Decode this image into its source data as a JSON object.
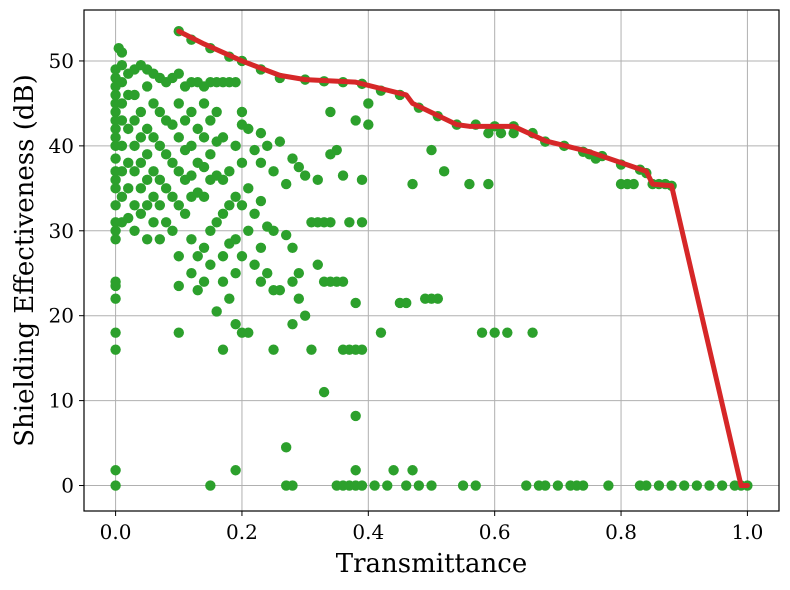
{
  "chart_data": {
    "type": "scatter",
    "xlabel": "Transmittance",
    "ylabel": "Shielding Effectiveness (dB)",
    "xlim": [
      -0.05,
      1.05
    ],
    "ylim": [
      -3,
      56
    ],
    "grid": true,
    "xticks": [
      0.0,
      0.2,
      0.4,
      0.6,
      0.8,
      1.0
    ],
    "xtick_labels": [
      "0.0",
      "0.2",
      "0.4",
      "0.6",
      "0.8",
      "1.0"
    ],
    "yticks": [
      0,
      10,
      20,
      30,
      40,
      50
    ],
    "ytick_labels": [
      "0",
      "10",
      "20",
      "30",
      "40",
      "50"
    ],
    "colors": {
      "points": "#2ca02c",
      "frontier": "#d62728",
      "grid": "#b0b0b0"
    },
    "points": [
      [
        0.0,
        0
      ],
      [
        0.0,
        1.8
      ],
      [
        0.0,
        16
      ],
      [
        0.0,
        18
      ],
      [
        0.0,
        22
      ],
      [
        0.0,
        23.5
      ],
      [
        0.0,
        24
      ],
      [
        0.0,
        29
      ],
      [
        0.0,
        30
      ],
      [
        0.0,
        31
      ],
      [
        0.0,
        33
      ],
      [
        0.0,
        35
      ],
      [
        0.0,
        36
      ],
      [
        0.0,
        37
      ],
      [
        0.0,
        38.5
      ],
      [
        0.0,
        40
      ],
      [
        0.0,
        41
      ],
      [
        0.0,
        42
      ],
      [
        0.0,
        43
      ],
      [
        0.0,
        44
      ],
      [
        0.0,
        45
      ],
      [
        0.0,
        46
      ],
      [
        0.0,
        47
      ],
      [
        0.0,
        48
      ],
      [
        0.0,
        49
      ],
      [
        0.005,
        51.5
      ],
      [
        0.01,
        51
      ],
      [
        0.01,
        49.5
      ],
      [
        0.01,
        47.5
      ],
      [
        0.01,
        45
      ],
      [
        0.01,
        43
      ],
      [
        0.01,
        40
      ],
      [
        0.01,
        37
      ],
      [
        0.01,
        34
      ],
      [
        0.01,
        31
      ],
      [
        0.02,
        48.5
      ],
      [
        0.02,
        46
      ],
      [
        0.02,
        42
      ],
      [
        0.02,
        38
      ],
      [
        0.02,
        35
      ],
      [
        0.02,
        31.5
      ],
      [
        0.03,
        49
      ],
      [
        0.03,
        46
      ],
      [
        0.03,
        43
      ],
      [
        0.03,
        40
      ],
      [
        0.03,
        37
      ],
      [
        0.03,
        33
      ],
      [
        0.03,
        30
      ],
      [
        0.04,
        49.5
      ],
      [
        0.04,
        44
      ],
      [
        0.04,
        41
      ],
      [
        0.04,
        38
      ],
      [
        0.04,
        35
      ],
      [
        0.04,
        32
      ],
      [
        0.05,
        49
      ],
      [
        0.05,
        47
      ],
      [
        0.05,
        42
      ],
      [
        0.05,
        39
      ],
      [
        0.05,
        36
      ],
      [
        0.05,
        33
      ],
      [
        0.05,
        29
      ],
      [
        0.06,
        48.5
      ],
      [
        0.06,
        45
      ],
      [
        0.06,
        41
      ],
      [
        0.06,
        37
      ],
      [
        0.06,
        34
      ],
      [
        0.06,
        31
      ],
      [
        0.07,
        48
      ],
      [
        0.07,
        44
      ],
      [
        0.07,
        40
      ],
      [
        0.07,
        36
      ],
      [
        0.07,
        33
      ],
      [
        0.07,
        29
      ],
      [
        0.08,
        47.5
      ],
      [
        0.08,
        43
      ],
      [
        0.08,
        39
      ],
      [
        0.08,
        35
      ],
      [
        0.08,
        31
      ],
      [
        0.09,
        48
      ],
      [
        0.09,
        42.5
      ],
      [
        0.09,
        38
      ],
      [
        0.09,
        34
      ],
      [
        0.09,
        30
      ],
      [
        0.1,
        48.5
      ],
      [
        0.1,
        45
      ],
      [
        0.1,
        41
      ],
      [
        0.1,
        37
      ],
      [
        0.1,
        33
      ],
      [
        0.1,
        27
      ],
      [
        0.1,
        23.5
      ],
      [
        0.1,
        18
      ],
      [
        0.11,
        47
      ],
      [
        0.11,
        43
      ],
      [
        0.11,
        39.5
      ],
      [
        0.11,
        36
      ],
      [
        0.11,
        32
      ],
      [
        0.12,
        47.5
      ],
      [
        0.12,
        44
      ],
      [
        0.12,
        40
      ],
      [
        0.12,
        36.5
      ],
      [
        0.12,
        34
      ],
      [
        0.12,
        29
      ],
      [
        0.12,
        25
      ],
      [
        0.13,
        47.5
      ],
      [
        0.13,
        42
      ],
      [
        0.13,
        38
      ],
      [
        0.13,
        34.5
      ],
      [
        0.13,
        27
      ],
      [
        0.13,
        23
      ],
      [
        0.14,
        47
      ],
      [
        0.14,
        45
      ],
      [
        0.14,
        41
      ],
      [
        0.14,
        37.5
      ],
      [
        0.14,
        34
      ],
      [
        0.14,
        28
      ],
      [
        0.14,
        24
      ],
      [
        0.15,
        47.5
      ],
      [
        0.15,
        43
      ],
      [
        0.15,
        39
      ],
      [
        0.15,
        36
      ],
      [
        0.15,
        30
      ],
      [
        0.15,
        26
      ],
      [
        0.15,
        0
      ],
      [
        0.16,
        47.5
      ],
      [
        0.16,
        44
      ],
      [
        0.16,
        40.5
      ],
      [
        0.16,
        36.5
      ],
      [
        0.16,
        31
      ],
      [
        0.16,
        20.5
      ],
      [
        0.17,
        47.5
      ],
      [
        0.17,
        41
      ],
      [
        0.17,
        36
      ],
      [
        0.17,
        32
      ],
      [
        0.17,
        27
      ],
      [
        0.17,
        24
      ],
      [
        0.17,
        16
      ],
      [
        0.18,
        47.5
      ],
      [
        0.18,
        37
      ],
      [
        0.18,
        33
      ],
      [
        0.18,
        28.5
      ],
      [
        0.18,
        22
      ],
      [
        0.19,
        47.5
      ],
      [
        0.19,
        40
      ],
      [
        0.19,
        34
      ],
      [
        0.19,
        29
      ],
      [
        0.19,
        25
      ],
      [
        0.19,
        19
      ],
      [
        0.19,
        1.8
      ],
      [
        0.2,
        44
      ],
      [
        0.2,
        42.5
      ],
      [
        0.2,
        38
      ],
      [
        0.2,
        33
      ],
      [
        0.2,
        27
      ],
      [
        0.2,
        18
      ],
      [
        0.21,
        42
      ],
      [
        0.21,
        35
      ],
      [
        0.21,
        30
      ],
      [
        0.21,
        18
      ],
      [
        0.22,
        39.5
      ],
      [
        0.22,
        32
      ],
      [
        0.22,
        26
      ],
      [
        0.23,
        41.5
      ],
      [
        0.23,
        38
      ],
      [
        0.23,
        33.5
      ],
      [
        0.23,
        28
      ],
      [
        0.23,
        24
      ],
      [
        0.24,
        40
      ],
      [
        0.24,
        30.5
      ],
      [
        0.24,
        25
      ],
      [
        0.25,
        37
      ],
      [
        0.25,
        30
      ],
      [
        0.25,
        23
      ],
      [
        0.25,
        16
      ],
      [
        0.26,
        40.5
      ],
      [
        0.26,
        23
      ],
      [
        0.27,
        35.5
      ],
      [
        0.27,
        29.5
      ],
      [
        0.27,
        4.5
      ],
      [
        0.27,
        0
      ],
      [
        0.28,
        38.5
      ],
      [
        0.28,
        28
      ],
      [
        0.28,
        24
      ],
      [
        0.28,
        19
      ],
      [
        0.28,
        0
      ],
      [
        0.29,
        37.5
      ],
      [
        0.29,
        25
      ],
      [
        0.29,
        22
      ],
      [
        0.3,
        36.5
      ],
      [
        0.3,
        20
      ],
      [
        0.31,
        16
      ],
      [
        0.31,
        31
      ],
      [
        0.32,
        36
      ],
      [
        0.32,
        31
      ],
      [
        0.32,
        26
      ],
      [
        0.33,
        31
      ],
      [
        0.33,
        24
      ],
      [
        0.33,
        11
      ],
      [
        0.34,
        44
      ],
      [
        0.34,
        39
      ],
      [
        0.34,
        31
      ],
      [
        0.34,
        24
      ],
      [
        0.35,
        39.5
      ],
      [
        0.35,
        24
      ],
      [
        0.35,
        0
      ],
      [
        0.36,
        36.5
      ],
      [
        0.36,
        24
      ],
      [
        0.36,
        16
      ],
      [
        0.36,
        0
      ],
      [
        0.37,
        31
      ],
      [
        0.37,
        16
      ],
      [
        0.37,
        0
      ],
      [
        0.38,
        43
      ],
      [
        0.38,
        21.5
      ],
      [
        0.38,
        16
      ],
      [
        0.38,
        8.2
      ],
      [
        0.38,
        1.8
      ],
      [
        0.38,
        0
      ],
      [
        0.39,
        36
      ],
      [
        0.39,
        31
      ],
      [
        0.39,
        16
      ],
      [
        0.39,
        0
      ],
      [
        0.4,
        42.5
      ],
      [
        0.4,
        45
      ],
      [
        0.41,
        0
      ],
      [
        0.42,
        18
      ],
      [
        0.43,
        0
      ],
      [
        0.44,
        1.8
      ],
      [
        0.45,
        21.5
      ],
      [
        0.46,
        21.5
      ],
      [
        0.46,
        0
      ],
      [
        0.47,
        35.5
      ],
      [
        0.47,
        1.8
      ],
      [
        0.48,
        0
      ],
      [
        0.49,
        22
      ],
      [
        0.5,
        39.5
      ],
      [
        0.5,
        22
      ],
      [
        0.5,
        0
      ],
      [
        0.51,
        22
      ],
      [
        0.52,
        37
      ],
      [
        0.55,
        0
      ],
      [
        0.56,
        35.5
      ],
      [
        0.57,
        0
      ],
      [
        0.58,
        18
      ],
      [
        0.59,
        41.5
      ],
      [
        0.59,
        35.5
      ],
      [
        0.6,
        18
      ],
      [
        0.61,
        41.5
      ],
      [
        0.62,
        18
      ],
      [
        0.63,
        41.5
      ],
      [
        0.65,
        0
      ],
      [
        0.66,
        18
      ],
      [
        0.67,
        0
      ],
      [
        0.68,
        0
      ],
      [
        0.7,
        0
      ],
      [
        0.72,
        0
      ],
      [
        0.73,
        0
      ],
      [
        0.74,
        0
      ],
      [
        0.75,
        39
      ],
      [
        0.76,
        38.5
      ],
      [
        0.78,
        0
      ],
      [
        0.8,
        35.5
      ],
      [
        0.81,
        35.5
      ],
      [
        0.82,
        35.5
      ],
      [
        0.83,
        0
      ],
      [
        0.84,
        0
      ],
      [
        0.85,
        35.5
      ],
      [
        0.86,
        0
      ],
      [
        0.87,
        35.5
      ],
      [
        0.88,
        0
      ],
      [
        0.9,
        0
      ],
      [
        0.92,
        0
      ],
      [
        0.94,
        0
      ],
      [
        0.96,
        0
      ],
      [
        0.98,
        0
      ],
      [
        0.99,
        0
      ],
      [
        1.0,
        0
      ],
      [
        0.1,
        53.5
      ],
      [
        0.12,
        52.5
      ],
      [
        0.15,
        51.5
      ],
      [
        0.18,
        50.5
      ],
      [
        0.2,
        50
      ],
      [
        0.23,
        49
      ],
      [
        0.26,
        48
      ],
      [
        0.3,
        47.8
      ],
      [
        0.33,
        47.6
      ],
      [
        0.36,
        47.5
      ],
      [
        0.39,
        47.3
      ],
      [
        0.42,
        46.5
      ],
      [
        0.45,
        46
      ],
      [
        0.48,
        44.5
      ],
      [
        0.51,
        43.5
      ],
      [
        0.54,
        42.5
      ],
      [
        0.57,
        42.5
      ],
      [
        0.6,
        42.3
      ],
      [
        0.63,
        42.3
      ],
      [
        0.66,
        41.5
      ],
      [
        0.68,
        40.5
      ],
      [
        0.71,
        40
      ],
      [
        0.74,
        39.3
      ],
      [
        0.77,
        38.8
      ],
      [
        0.8,
        37.8
      ],
      [
        0.83,
        37.2
      ],
      [
        0.84,
        36.8
      ],
      [
        0.86,
        35.5
      ],
      [
        0.88,
        35.3
      ]
    ],
    "frontier": [
      [
        0.1,
        53.5
      ],
      [
        0.14,
        52
      ],
      [
        0.2,
        50
      ],
      [
        0.26,
        48.3
      ],
      [
        0.3,
        47.8
      ],
      [
        0.38,
        47.5
      ],
      [
        0.46,
        46
      ],
      [
        0.47,
        45
      ],
      [
        0.54,
        42.5
      ],
      [
        0.56,
        42.3
      ],
      [
        0.63,
        42.3
      ],
      [
        0.68,
        40.6
      ],
      [
        0.75,
        39.3
      ],
      [
        0.84,
        37
      ],
      [
        0.85,
        35.5
      ],
      [
        0.88,
        35.3
      ],
      [
        0.99,
        0
      ],
      [
        1.0,
        0
      ]
    ]
  }
}
